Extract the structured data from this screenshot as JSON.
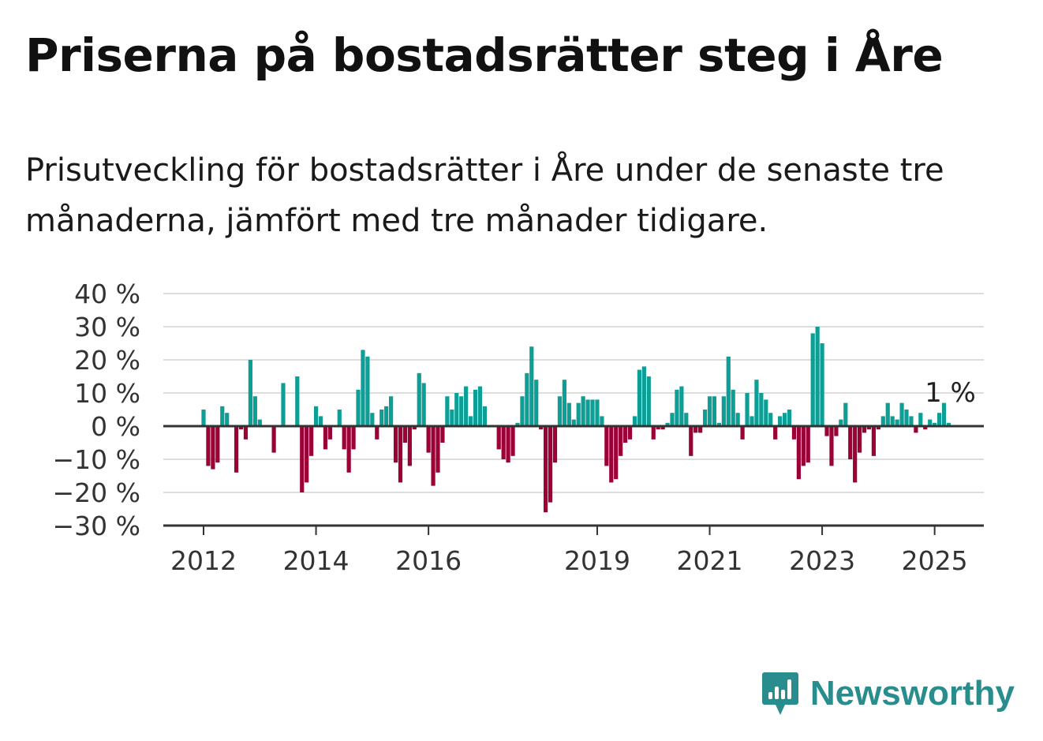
{
  "title": "Priserna på bostadsrätter steg i Åre",
  "subtitle": "Prisutveckling för bostadsrätter i Åre under de senaste tre månaderna, jämfört med tre månader tidigare.",
  "brand": {
    "name": "Newsworthy",
    "color": "#2a8d8d"
  },
  "colors": {
    "positive": "#0d9e96",
    "negative": "#9b0036",
    "grid": "#dddddd",
    "axis": "#333333"
  },
  "chart_data": {
    "type": "bar",
    "start": "2012-01",
    "frequency": "monthly",
    "ylim": [
      -30,
      40
    ],
    "y_ticks": [
      -30,
      -20,
      -10,
      0,
      10,
      20,
      30,
      40
    ],
    "y_tick_labels": [
      "−30 %",
      "−20 %",
      "−10 %",
      "0 %",
      "10 %",
      "20 %",
      "30 %",
      "40 %"
    ],
    "x_tick_labels": [
      "2012",
      "2014",
      "2016",
      "2019",
      "2021",
      "2023",
      "2025"
    ],
    "x_tick_dates": [
      "2012-01",
      "2014-01",
      "2016-01",
      "2019-01",
      "2021-01",
      "2023-01",
      "2025-01"
    ],
    "grid": true,
    "annotation": "1 %",
    "values": [
      5,
      -12,
      -13,
      -11,
      6,
      4,
      0,
      -14,
      -1,
      -4,
      20,
      9,
      2,
      0,
      0,
      -8,
      0,
      13,
      0,
      0,
      15,
      -20,
      -17,
      -9,
      6,
      3,
      -7,
      -4,
      0,
      5,
      -7,
      -14,
      -7,
      11,
      23,
      21,
      4,
      -4,
      5,
      6,
      9,
      -11,
      -17,
      -5,
      -12,
      -1,
      16,
      13,
      -8,
      -18,
      -14,
      -5,
      9,
      5,
      10,
      9,
      12,
      3,
      11,
      12,
      6,
      0,
      0,
      -7,
      -10,
      -11,
      -9,
      1,
      9,
      16,
      24,
      14,
      -1,
      -26,
      -23,
      -11,
      9,
      14,
      7,
      2,
      7,
      9,
      8,
      8,
      8,
      3,
      -12,
      -17,
      -16,
      -9,
      -5,
      -4,
      3,
      17,
      18,
      15,
      -4,
      -1,
      -1,
      1,
      4,
      11,
      12,
      4,
      -9,
      -2,
      -2,
      5,
      9,
      9,
      1,
      9,
      21,
      11,
      4,
      -4,
      10,
      3,
      14,
      10,
      8,
      4,
      -4,
      3,
      4,
      5,
      -4,
      -16,
      -12,
      -11,
      28,
      30,
      25,
      -3,
      -12,
      -3,
      2,
      7,
      -10,
      -17,
      -8,
      -2,
      -1,
      -9,
      -1,
      3,
      7,
      3,
      2,
      7,
      5,
      3,
      -2,
      4,
      -1,
      2,
      1,
      4,
      7,
      1
    ]
  }
}
